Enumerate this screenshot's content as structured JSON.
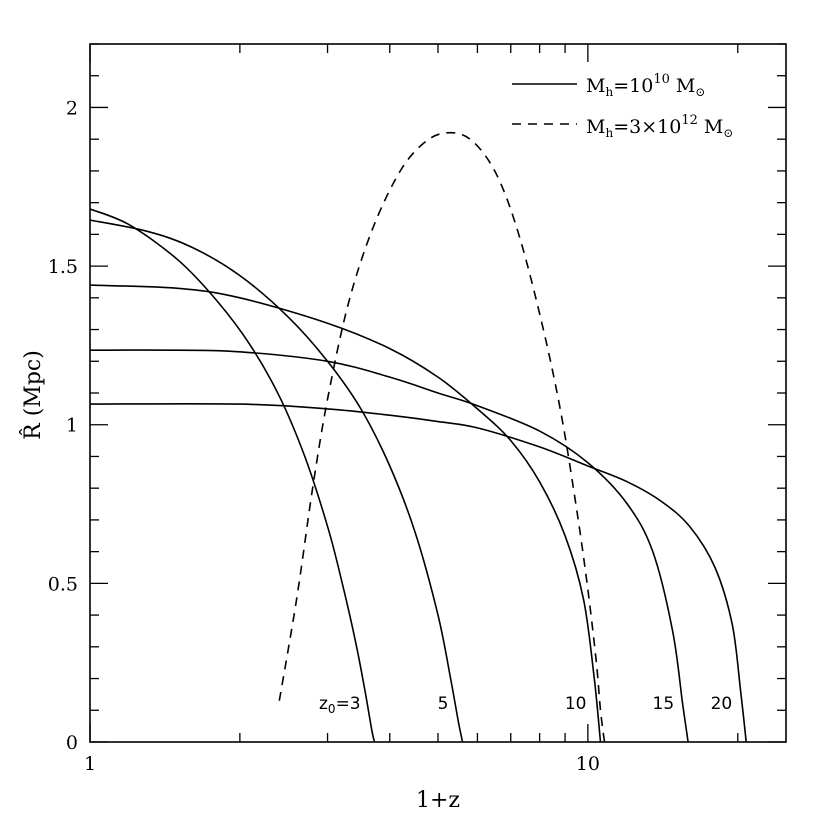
{
  "chart_data": {
    "type": "line",
    "xscale": "log",
    "xlim": [
      1,
      25
    ],
    "ylim": [
      0,
      2.2
    ],
    "xlabel": "1+z",
    "ylabel": "R̂ (Mpc)",
    "xticks_major": [
      1,
      10
    ],
    "xtick_labels": [
      "1",
      "10"
    ],
    "yticks_major": [
      0,
      0.5,
      1,
      1.5,
      2
    ],
    "ytick_labels": [
      "0",
      "0.5",
      "1",
      "1.5",
      "2"
    ],
    "legend": {
      "position": "top-right",
      "entries": [
        {
          "style": "solid",
          "label": "M_h=10^10 M_⊙",
          "parts": {
            "M": "M",
            "sub": "h",
            "eq": "=10",
            "sup": "10",
            "unit": " M",
            "odot": "⊙"
          }
        },
        {
          "style": "dashed",
          "label": "M_h=3×10^12 M_⊙",
          "parts": {
            "M": "M",
            "sub": "h",
            "eq": "=3×10",
            "sup": "12",
            "unit": " M",
            "odot": "⊙"
          }
        }
      ]
    },
    "annotations": {
      "z0_prefix": "z",
      "z0_sub": "0",
      "z0_eq": "=3"
    },
    "series": [
      {
        "style": "solid",
        "label": "3",
        "x": [
          1,
          1.2,
          1.5,
          1.8,
          2.1,
          2.4,
          2.7,
          3.0,
          3.2,
          3.4,
          3.55,
          3.65,
          3.7,
          3.73
        ],
        "y": [
          1.68,
          1.63,
          1.52,
          1.39,
          1.25,
          1.09,
          0.9,
          0.68,
          0.51,
          0.33,
          0.18,
          0.07,
          0.02,
          0.0
        ]
      },
      {
        "style": "solid",
        "label": "5",
        "x": [
          1,
          1.3,
          1.6,
          2.0,
          2.5,
          3.0,
          3.5,
          4.0,
          4.5,
          5.0,
          5.3,
          5.5,
          5.6
        ],
        "y": [
          1.645,
          1.61,
          1.56,
          1.47,
          1.34,
          1.2,
          1.05,
          0.87,
          0.66,
          0.4,
          0.2,
          0.06,
          0.0
        ]
      },
      {
        "style": "solid",
        "label": "10",
        "x": [
          1,
          1.5,
          2.0,
          3.0,
          4.0,
          5.0,
          6.0,
          7.0,
          8.0,
          9.0,
          9.8,
          10.3,
          10.6
        ],
        "y": [
          1.44,
          1.43,
          1.4,
          1.32,
          1.24,
          1.15,
          1.05,
          0.95,
          0.82,
          0.65,
          0.45,
          0.2,
          0.0
        ]
      },
      {
        "style": "solid",
        "label": "15",
        "x": [
          1,
          1.5,
          2.0,
          3.0,
          4.0,
          5.0,
          6.0,
          8.0,
          10.0,
          12.0,
          13.5,
          14.8,
          15.5,
          15.9
        ],
        "y": [
          1.235,
          1.235,
          1.23,
          1.2,
          1.15,
          1.1,
          1.06,
          0.98,
          0.88,
          0.75,
          0.6,
          0.35,
          0.12,
          0.0
        ]
      },
      {
        "style": "solid",
        "label": "20",
        "x": [
          1,
          2.0,
          3.0,
          4.0,
          5.0,
          6.0,
          8.0,
          10.0,
          12.0,
          14.0,
          16.0,
          18.0,
          19.5,
          20.3,
          20.8
        ],
        "y": [
          1.065,
          1.065,
          1.05,
          1.03,
          1.01,
          0.99,
          0.93,
          0.87,
          0.82,
          0.76,
          0.68,
          0.55,
          0.37,
          0.15,
          0.0
        ]
      },
      {
        "style": "dashed",
        "label": "M_h=3×10^12 M_⊙",
        "x": [
          2.4,
          2.6,
          2.8,
          3.0,
          3.3,
          3.7,
          4.2,
          4.7,
          5.2,
          5.8,
          6.5,
          7.2,
          8.0,
          8.8,
          9.5,
          10.0,
          10.4,
          10.6,
          10.8
        ],
        "y": [
          0.13,
          0.45,
          0.8,
          1.08,
          1.38,
          1.62,
          1.8,
          1.89,
          1.92,
          1.9,
          1.8,
          1.62,
          1.35,
          1.05,
          0.73,
          0.48,
          0.25,
          0.1,
          0.0
        ]
      }
    ]
  }
}
